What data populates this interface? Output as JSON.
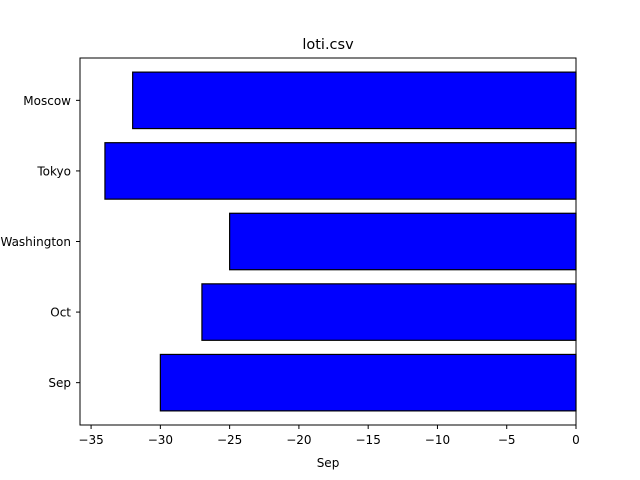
{
  "chart_data": {
    "type": "bar",
    "orientation": "horizontal",
    "title": "loti.csv",
    "xlabel": "Sep",
    "ylabel": "",
    "categories": [
      "Sep",
      "Oct",
      "Washington",
      "Tokyo",
      "Moscow"
    ],
    "values": [
      -30,
      -27,
      -25,
      -34,
      -32
    ],
    "xlim": [
      -35.8,
      0
    ],
    "xticks": [
      -35,
      -30,
      -25,
      -20,
      -15,
      -10,
      -5,
      0
    ],
    "xtick_labels": [
      "−35",
      "−30",
      "−25",
      "−20",
      "−15",
      "−10",
      "−5",
      "0"
    ],
    "bar_color": "#0000ff",
    "edge_color": "#000000",
    "grid": false,
    "legend": "none"
  }
}
